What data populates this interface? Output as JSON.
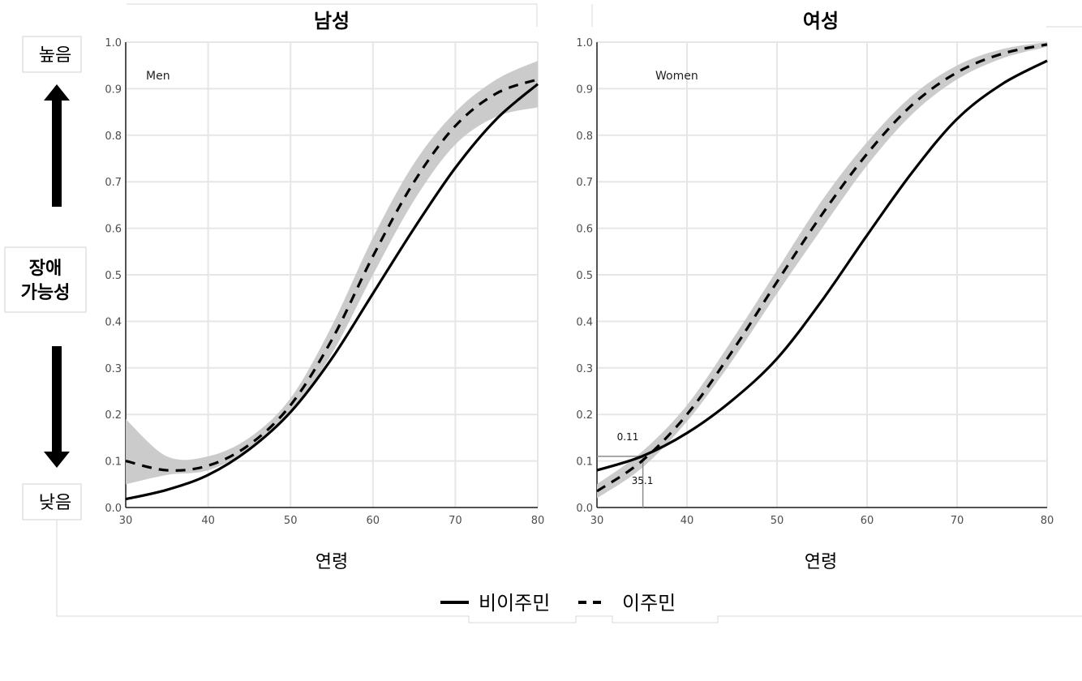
{
  "side_labels": {
    "high": "높음",
    "low": "낮음",
    "center_line1": "장애",
    "center_line2": "가능성"
  },
  "legend": {
    "solid_label": "비이주민",
    "dashed_label": "이주민"
  },
  "colors": {
    "line": "#000000",
    "band": "#c8c8c8",
    "grid": "#e6e6e6",
    "panel": "#ffffff",
    "annotation": "#8c8c8c"
  },
  "chart_data": [
    {
      "type": "line",
      "title": "남성",
      "inset_label": "Men",
      "xlabel": "연령",
      "ylabel": "",
      "xlim": [
        30,
        80
      ],
      "ylim": [
        0,
        1
      ],
      "xticks": [
        30,
        40,
        50,
        60,
        70,
        80
      ],
      "yticks": [
        0.0,
        0.1,
        0.2,
        0.3,
        0.4,
        0.5,
        0.6,
        0.7,
        0.8,
        0.9,
        1.0
      ],
      "grid": true,
      "x": [
        30,
        35,
        40,
        45,
        50,
        55,
        60,
        65,
        70,
        75,
        80
      ],
      "series": [
        {
          "name": "비이주민",
          "style": "solid",
          "values": [
            0.018,
            0.038,
            0.07,
            0.125,
            0.205,
            0.32,
            0.46,
            0.6,
            0.73,
            0.835,
            0.91
          ]
        },
        {
          "name": "이주민",
          "style": "dashed",
          "values": [
            0.1,
            0.08,
            0.09,
            0.135,
            0.22,
            0.36,
            0.54,
            0.7,
            0.82,
            0.89,
            0.92
          ],
          "band_lower": [
            0.05,
            0.07,
            0.08,
            0.125,
            0.205,
            0.33,
            0.5,
            0.66,
            0.78,
            0.84,
            0.86
          ],
          "band_upper": [
            0.19,
            0.11,
            0.11,
            0.15,
            0.235,
            0.39,
            0.58,
            0.74,
            0.85,
            0.92,
            0.96
          ]
        }
      ]
    },
    {
      "type": "line",
      "title": "여성",
      "inset_label": "Women",
      "xlabel": "연령",
      "ylabel": "",
      "xlim": [
        30,
        80
      ],
      "ylim": [
        0,
        1
      ],
      "xticks": [
        30,
        40,
        50,
        60,
        70,
        80
      ],
      "yticks": [
        0.0,
        0.1,
        0.2,
        0.3,
        0.4,
        0.5,
        0.6,
        0.7,
        0.8,
        0.9,
        1.0
      ],
      "grid": true,
      "x": [
        30,
        35,
        40,
        45,
        50,
        55,
        60,
        65,
        70,
        75,
        80
      ],
      "series": [
        {
          "name": "비이주민",
          "style": "solid",
          "values": [
            0.08,
            0.11,
            0.16,
            0.23,
            0.32,
            0.445,
            0.585,
            0.72,
            0.835,
            0.91,
            0.96
          ]
        },
        {
          "name": "이주민",
          "style": "dashed",
          "values": [
            0.035,
            0.1,
            0.2,
            0.335,
            0.485,
            0.63,
            0.76,
            0.865,
            0.935,
            0.975,
            0.995
          ],
          "band_lower": [
            0.02,
            0.085,
            0.185,
            0.315,
            0.46,
            0.6,
            0.735,
            0.845,
            0.92,
            0.965,
            0.99
          ],
          "band_upper": [
            0.05,
            0.12,
            0.22,
            0.36,
            0.51,
            0.66,
            0.785,
            0.885,
            0.95,
            0.985,
            1.0
          ]
        }
      ],
      "annotations": [
        {
          "text": "0.11",
          "x": 35.1,
          "y": 0.11
        },
        {
          "text": "35.1",
          "x": 35.1,
          "y": 0.11
        }
      ]
    }
  ]
}
